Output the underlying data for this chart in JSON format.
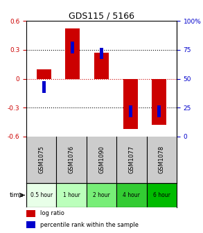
{
  "title": "GDS115 / 5166",
  "samples": [
    "GSM1075",
    "GSM1076",
    "GSM1090",
    "GSM1077",
    "GSM1078"
  ],
  "time_labels": [
    "0.5 hour",
    "1 hour",
    "2 hour",
    "4 hour",
    "6 hour"
  ],
  "time_colors": [
    "#e8ffe8",
    "#bbffbb",
    "#77ee77",
    "#33cc33",
    "#00bb00"
  ],
  "log_ratios": [
    0.1,
    0.52,
    0.27,
    -0.52,
    -0.48
  ],
  "percentile_ranks": [
    43,
    77,
    72,
    22,
    22
  ],
  "ylim": [
    -0.6,
    0.6
  ],
  "yticks_left": [
    -0.6,
    -0.3,
    0,
    0.3,
    0.6
  ],
  "yticks_right": [
    0,
    25,
    50,
    75,
    100
  ],
  "bar_color": "#cc0000",
  "pct_color": "#0000cc",
  "bar_width": 0.5,
  "pct_bar_width": 0.12,
  "background_color": "#ffffff",
  "zero_line_color": "#cc0000",
  "dot_line_color": "#000000",
  "sample_bg": "#cccccc",
  "legend_square_size": 7
}
